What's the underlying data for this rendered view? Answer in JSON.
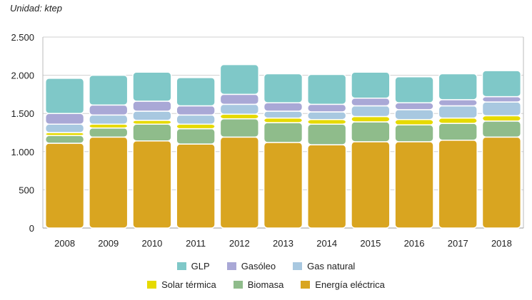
{
  "chart_data": {
    "type": "bar",
    "stacked": true,
    "title": "",
    "unit_label": "Unidad: ktep",
    "xlabel": "",
    "ylabel": "",
    "ylim": [
      0,
      2500
    ],
    "yticks": [
      {
        "value": 0,
        "label": "0"
      },
      {
        "value": 500,
        "label": "500"
      },
      {
        "value": 1000,
        "label": "1.000"
      },
      {
        "value": 1500,
        "label": "1.500"
      },
      {
        "value": 2000,
        "label": "2.000"
      },
      {
        "value": 2500,
        "label": "2.500"
      }
    ],
    "grid": true,
    "categories": [
      "2008",
      "2009",
      "2010",
      "2011",
      "2012",
      "2013",
      "2014",
      "2015",
      "2016",
      "2017",
      "2018"
    ],
    "series": [
      {
        "name": "Energía eléctrica",
        "color": "#d9a520",
        "values": [
          1110,
          1190,
          1140,
          1100,
          1190,
          1120,
          1090,
          1130,
          1130,
          1150,
          1190
        ]
      },
      {
        "name": "Biomasa",
        "color": "#8fbc8b",
        "values": [
          100,
          120,
          220,
          200,
          240,
          260,
          270,
          260,
          220,
          220,
          210
        ]
      },
      {
        "name": "Solar térmica",
        "color": "#e6da00",
        "values": [
          40,
          50,
          50,
          60,
          60,
          60,
          60,
          70,
          70,
          70,
          70
        ]
      },
      {
        "name": "Gas natural",
        "color": "#a8c8e0",
        "values": [
          110,
          120,
          120,
          120,
          130,
          90,
          100,
          140,
          130,
          160,
          180
        ]
      },
      {
        "name": "Gasóleo",
        "color": "#a9a8d6",
        "values": [
          140,
          130,
          130,
          120,
          130,
          110,
          100,
          100,
          90,
          80,
          70
        ]
      },
      {
        "name": "GLP",
        "color": "#7fc8c8",
        "values": [
          460,
          390,
          380,
          370,
          390,
          380,
          390,
          340,
          340,
          340,
          340
        ]
      }
    ]
  },
  "legend": {
    "row1": [
      {
        "label": "GLP",
        "color": "#7fc8c8"
      },
      {
        "label": "Gasóleo",
        "color": "#a9a8d6"
      },
      {
        "label": "Gas natural",
        "color": "#a8c8e0"
      }
    ],
    "row2": [
      {
        "label": "Solar térmica",
        "color": "#e6da00"
      },
      {
        "label": "Biomasa",
        "color": "#8fbc8b"
      },
      {
        "label": "Energía eléctrica",
        "color": "#d9a520"
      }
    ]
  }
}
